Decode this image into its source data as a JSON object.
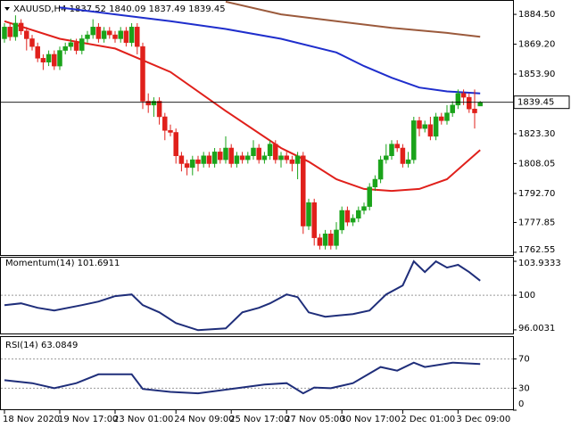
{
  "chart_data": [
    {
      "type": "candlestick",
      "title": "XAUUSD,H4 1837.52 1840.09 1837.49 1839.45",
      "up_color": "#1aa31a",
      "down_color": "#e0201b",
      "open": [
        1872,
        1878,
        1873,
        1880,
        1876,
        1872,
        1868,
        1862,
        1860,
        1864,
        1858,
        1866,
        1868,
        1870,
        1866,
        1872,
        1874,
        1878,
        1872,
        1876,
        1874,
        1872,
        1876,
        1870,
        1878,
        1868,
        1840,
        1838,
        1840,
        1832,
        1825,
        1824,
        1812,
        1808,
        1806,
        1810,
        1808,
        1812,
        1808,
        1814,
        1810,
        1816,
        1808,
        1812,
        1810,
        1812,
        1816,
        1810,
        1812,
        1818,
        1810,
        1812,
        1810,
        1808,
        1812,
        1776,
        1788,
        1770,
        1766,
        1772,
        1766,
        1774,
        1784,
        1778,
        1780,
        1784,
        1786,
        1796,
        1800,
        1810,
        1812,
        1818,
        1816,
        1808,
        1810,
        1830,
        1826,
        1828,
        1822,
        1832,
        1830,
        1834,
        1838,
        1844,
        1842,
        1836,
        1837.52
      ],
      "high": [
        1880,
        1880,
        1884,
        1882,
        1878,
        1874,
        1870,
        1864,
        1866,
        1866,
        1868,
        1870,
        1872,
        1872,
        1874,
        1876,
        1882,
        1880,
        1878,
        1878,
        1876,
        1878,
        1878,
        1880,
        1880,
        1870,
        1844,
        1842,
        1842,
        1834,
        1828,
        1826,
        1814,
        1810,
        1812,
        1812,
        1814,
        1814,
        1816,
        1816,
        1822,
        1818,
        1814,
        1814,
        1814,
        1820,
        1818,
        1814,
        1820,
        1820,
        1814,
        1814,
        1812,
        1814,
        1814,
        1790,
        1790,
        1772,
        1774,
        1774,
        1778,
        1786,
        1786,
        1782,
        1786,
        1788,
        1798,
        1802,
        1812,
        1818,
        1820,
        1820,
        1818,
        1814,
        1832,
        1832,
        1830,
        1832,
        1834,
        1834,
        1838,
        1840,
        1846,
        1846,
        1844,
        1846,
        1840.09
      ],
      "low": [
        1870,
        1871,
        1871,
        1874,
        1866,
        1866,
        1860,
        1856,
        1858,
        1856,
        1856,
        1864,
        1866,
        1864,
        1864,
        1870,
        1872,
        1870,
        1870,
        1872,
        1870,
        1870,
        1868,
        1868,
        1864,
        1836,
        1834,
        1832,
        1828,
        1820,
        1822,
        1808,
        1804,
        1802,
        1802,
        1804,
        1806,
        1806,
        1806,
        1808,
        1808,
        1806,
        1806,
        1808,
        1808,
        1810,
        1808,
        1808,
        1810,
        1808,
        1806,
        1808,
        1804,
        1800,
        1772,
        1774,
        1766,
        1764,
        1764,
        1764,
        1764,
        1772,
        1776,
        1776,
        1778,
        1782,
        1784,
        1794,
        1798,
        1808,
        1810,
        1814,
        1806,
        1806,
        1808,
        1822,
        1824,
        1820,
        1820,
        1828,
        1828,
        1832,
        1836,
        1838,
        1834,
        1826,
        1837.49
      ],
      "close": [
        1878,
        1873,
        1880,
        1876,
        1872,
        1868,
        1862,
        1860,
        1864,
        1858,
        1866,
        1868,
        1870,
        1866,
        1872,
        1874,
        1878,
        1872,
        1876,
        1874,
        1872,
        1876,
        1870,
        1878,
        1868,
        1840,
        1838,
        1840,
        1832,
        1825,
        1824,
        1812,
        1808,
        1806,
        1810,
        1808,
        1812,
        1808,
        1814,
        1810,
        1816,
        1808,
        1812,
        1810,
        1812,
        1816,
        1810,
        1812,
        1818,
        1810,
        1812,
        1810,
        1808,
        1812,
        1776,
        1788,
        1770,
        1766,
        1772,
        1766,
        1774,
        1784,
        1778,
        1780,
        1784,
        1786,
        1796,
        1800,
        1810,
        1812,
        1818,
        1816,
        1808,
        1810,
        1830,
        1826,
        1828,
        1822,
        1832,
        1830,
        1834,
        1838,
        1844,
        1842,
        1836,
        1834,
        1839.45
      ],
      "series": [
        {
          "color": "#e0201b",
          "x": [
            0,
            10,
            20,
            30,
            40,
            50,
            55,
            60,
            65,
            70,
            75,
            80,
            86
          ],
          "values": [
            1881,
            1872,
            1867,
            1855,
            1835,
            1816,
            1809,
            1800,
            1795,
            1794,
            1795,
            1800,
            1815
          ]
        },
        {
          "color": "#1f2ecc",
          "x": [
            10,
            20,
            30,
            40,
            50,
            60,
            65,
            70,
            75,
            80,
            86
          ],
          "values": [
            1888,
            1884.5,
            1881,
            1877,
            1872,
            1865,
            1858,
            1852,
            1847,
            1845,
            1844
          ]
        },
        {
          "color": "#9b5a3c",
          "x": [
            40,
            50,
            60,
            70,
            80,
            86
          ],
          "values": [
            1891,
            1884.5,
            1881,
            1877.6,
            1875,
            1873
          ]
        }
      ],
      "ylim": [
        1760.7,
        1891.4
      ],
      "yticks": [
        {
          "value": 1884.5,
          "label": "1884.50"
        },
        {
          "value": 1869.2,
          "label": "1869.20"
        },
        {
          "value": 1853.9,
          "label": "1853.90"
        },
        {
          "value": 1823.3,
          "label": "1823.30"
        },
        1808.05,
        {
          "value": 1792.7,
          "label": "1792.70"
        },
        1777.85,
        1762.55
      ],
      "xticks": [
        {
          "value": 0,
          "label": "18 Nov 2020"
        },
        {
          "value": 10,
          "label": "19 Nov 17:00"
        },
        {
          "value": 20,
          "label": "23 Nov 01:00"
        },
        {
          "value": 31,
          "label": "24 Nov 09:00"
        },
        {
          "value": 41,
          "label": "25 Nov 17:00"
        },
        {
          "value": 51,
          "label": "27 Nov 05:00"
        },
        {
          "value": 61,
          "label": "30 Nov 17:00"
        },
        {
          "value": 72,
          "label": "2 Dec 01:00"
        },
        {
          "value": 82,
          "label": "3 Dec 09:00"
        }
      ]
    },
    {
      "type": "line",
      "title": "Momentum(14) 101.6911",
      "color": "#1f2e7a",
      "x": [
        0,
        3,
        6,
        9,
        14,
        17,
        20,
        23,
        25,
        28,
        31,
        35,
        40,
        43,
        46,
        48,
        51,
        53,
        55,
        58,
        63,
        66,
        69,
        72,
        74,
        76,
        78,
        80,
        82,
        84,
        86
      ],
      "values": [
        98.86,
        99.07,
        98.55,
        98.24,
        98.86,
        99.28,
        99.9,
        100.1,
        98.86,
        98.03,
        96.79,
        95.96,
        96.17,
        98.03,
        98.55,
        99.07,
        100.1,
        99.79,
        98.03,
        97.52,
        97.83,
        98.24,
        100.1,
        101.14,
        103.93,
        102.69,
        103.93,
        103.21,
        103.52,
        102.69,
        101.6911
      ],
      "levels": [
        100
      ],
      "ylim": [
        95.48,
        104.35
      ],
      "yticks": [
        103.9333,
        100,
        96.0031
      ]
    },
    {
      "type": "line",
      "title": "RSI(14) 63.0849",
      "color": "#1f2e7a",
      "x": [
        0,
        5,
        9,
        13,
        17,
        23,
        25,
        30,
        35,
        42,
        47,
        51,
        54,
        56,
        59,
        63,
        68,
        71,
        74,
        76,
        81,
        86
      ],
      "values": [
        41,
        37,
        30,
        37,
        49,
        49,
        29,
        25,
        23,
        30,
        35,
        37,
        23,
        31,
        30,
        37,
        59,
        54,
        65,
        59,
        65,
        63.0849
      ],
      "levels": [
        70,
        30
      ],
      "ylim": [
        0,
        100
      ],
      "yticks": [
        70,
        30,
        0
      ]
    }
  ]
}
